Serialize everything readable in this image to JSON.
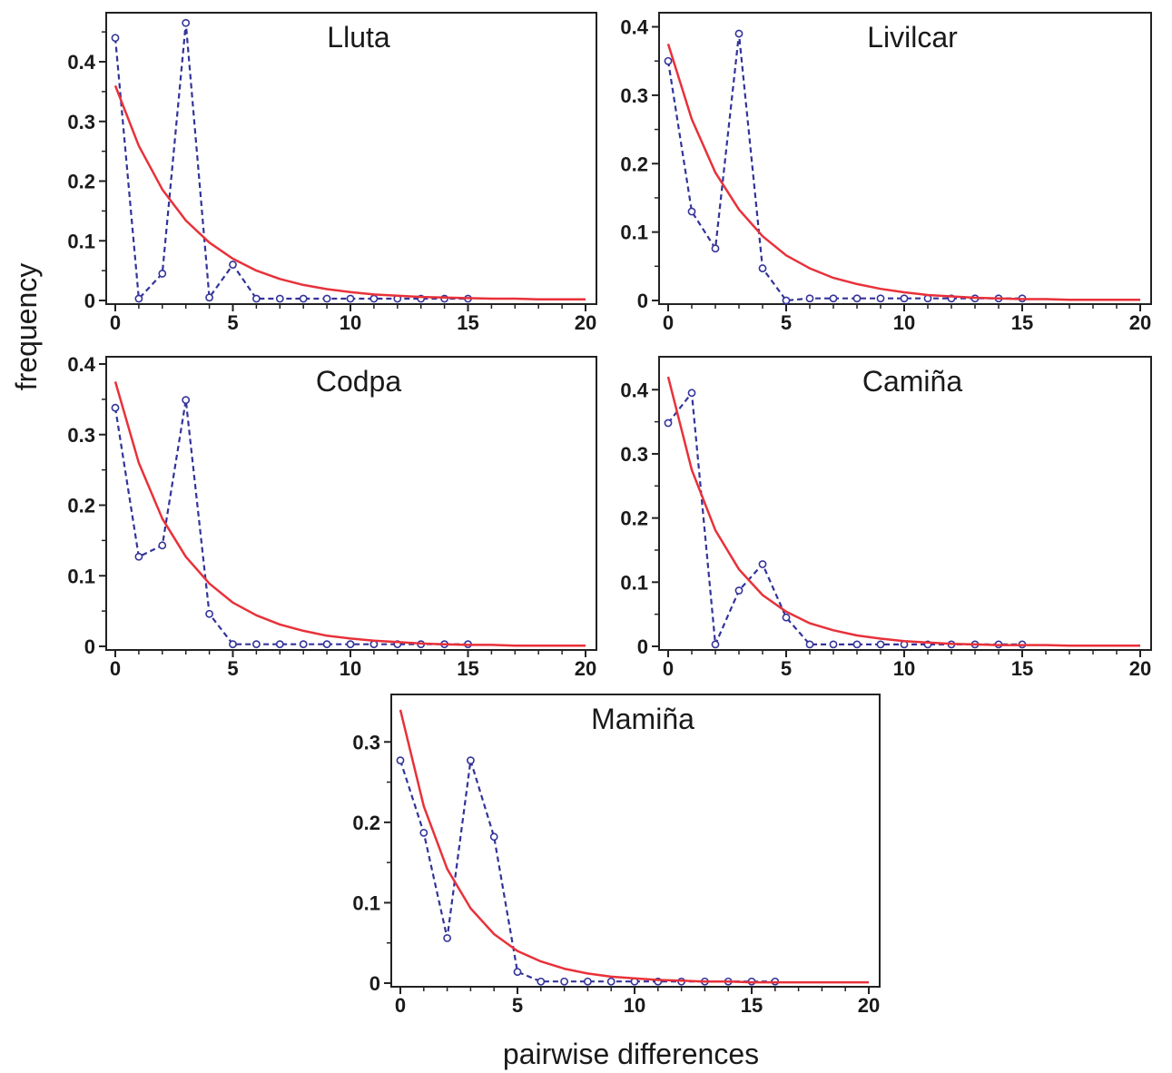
{
  "figure": {
    "ylabel": "frequency",
    "xlabel": "pairwise differences",
    "colors": {
      "observed": "#33339a",
      "expected": "#e8313a",
      "frame": "#222222"
    }
  },
  "chart_data": [
    {
      "type": "line",
      "title": "Lluta",
      "xlim": [
        0,
        20
      ],
      "ylim": [
        0,
        0.47
      ],
      "xticks": [
        "0",
        "5",
        "10",
        "15",
        "20"
      ],
      "yticks": [
        "0",
        "0.1",
        "0.2",
        "0.3",
        "0.4"
      ],
      "series": [
        {
          "style": "dashed-with-circles",
          "x": [
            0,
            1,
            2,
            3,
            4,
            5,
            6,
            7,
            8,
            9,
            10,
            11,
            12,
            13,
            14,
            15
          ],
          "y": [
            0.44,
            0.003,
            0.045,
            0.465,
            0.005,
            0.06,
            0.003,
            0.003,
            0.003,
            0.003,
            0.003,
            0.003,
            0.003,
            0.003,
            0.003,
            0.003
          ]
        },
        {
          "style": "solid",
          "x": [
            0,
            1,
            2,
            3,
            4,
            5,
            6,
            7,
            8,
            9,
            10,
            11,
            12,
            13,
            14,
            15,
            16,
            17,
            18,
            19,
            20
          ],
          "y": [
            0.36,
            0.259,
            0.186,
            0.134,
            0.097,
            0.07,
            0.05,
            0.036,
            0.026,
            0.019,
            0.014,
            0.01,
            0.008,
            0.006,
            0.005,
            0.004,
            0.003,
            0.003,
            0.002,
            0.002,
            0.002
          ]
        }
      ]
    },
    {
      "type": "line",
      "title": "Livilcar",
      "xlim": [
        0,
        20
      ],
      "ylim": [
        0,
        0.41
      ],
      "xticks": [
        "0",
        "5",
        "10",
        "15",
        "20"
      ],
      "yticks": [
        "0",
        "0.1",
        "0.2",
        "0.3",
        "0.4"
      ],
      "series": [
        {
          "style": "dashed-with-circles",
          "x": [
            0,
            1,
            2,
            3,
            4,
            5,
            6,
            7,
            8,
            9,
            10,
            11,
            12,
            13,
            14,
            15
          ],
          "y": [
            0.35,
            0.13,
            0.076,
            0.39,
            0.047,
            0.0,
            0.003,
            0.003,
            0.003,
            0.003,
            0.003,
            0.003,
            0.003,
            0.003,
            0.003,
            0.003
          ]
        },
        {
          "style": "solid",
          "x": [
            0,
            1,
            2,
            3,
            4,
            5,
            6,
            7,
            8,
            9,
            10,
            11,
            12,
            13,
            14,
            15,
            16,
            17,
            18,
            19,
            20
          ],
          "y": [
            0.375,
            0.265,
            0.187,
            0.133,
            0.094,
            0.066,
            0.047,
            0.033,
            0.024,
            0.017,
            0.012,
            0.008,
            0.006,
            0.004,
            0.003,
            0.002,
            0.002,
            0.001,
            0.001,
            0.001,
            0.001
          ]
        }
      ]
    },
    {
      "type": "line",
      "title": "Codpa",
      "xlim": [
        0,
        20
      ],
      "ylim": [
        0,
        0.4
      ],
      "xticks": [
        "0",
        "5",
        "10",
        "15",
        "20"
      ],
      "yticks": [
        "0",
        "0.1",
        "0.2",
        "0.3",
        "0.4"
      ],
      "series": [
        {
          "style": "dashed-with-circles",
          "x": [
            0,
            1,
            2,
            3,
            4,
            5,
            6,
            7,
            8,
            9,
            10,
            11,
            12,
            13,
            14,
            15
          ],
          "y": [
            0.338,
            0.127,
            0.143,
            0.349,
            0.046,
            0.003,
            0.003,
            0.003,
            0.003,
            0.003,
            0.003,
            0.003,
            0.003,
            0.003,
            0.003,
            0.003
          ]
        },
        {
          "style": "solid",
          "x": [
            0,
            1,
            2,
            3,
            4,
            5,
            6,
            7,
            8,
            9,
            10,
            11,
            12,
            13,
            14,
            15,
            16,
            17,
            18,
            19,
            20
          ],
          "y": [
            0.375,
            0.26,
            0.181,
            0.127,
            0.089,
            0.062,
            0.044,
            0.031,
            0.022,
            0.015,
            0.011,
            0.008,
            0.006,
            0.004,
            0.003,
            0.002,
            0.002,
            0.001,
            0.001,
            0.001,
            0.001
          ]
        }
      ]
    },
    {
      "type": "line",
      "title": "Camiña",
      "xlim": [
        0,
        20
      ],
      "ylim": [
        0,
        0.44
      ],
      "xticks": [
        "0",
        "5",
        "10",
        "15",
        "20"
      ],
      "yticks": [
        "0",
        "0.1",
        "0.2",
        "0.3",
        "0.4"
      ],
      "series": [
        {
          "style": "dashed-with-circles",
          "x": [
            0,
            1,
            2,
            3,
            4,
            5,
            6,
            7,
            8,
            9,
            10,
            11,
            12,
            13,
            14,
            15
          ],
          "y": [
            0.348,
            0.395,
            0.003,
            0.087,
            0.128,
            0.045,
            0.003,
            0.003,
            0.003,
            0.003,
            0.003,
            0.003,
            0.003,
            0.003,
            0.003,
            0.003
          ]
        },
        {
          "style": "solid",
          "x": [
            0,
            1,
            2,
            3,
            4,
            5,
            6,
            7,
            8,
            9,
            10,
            11,
            12,
            13,
            14,
            15,
            16,
            17,
            18,
            19,
            20
          ],
          "y": [
            0.42,
            0.275,
            0.181,
            0.12,
            0.08,
            0.054,
            0.036,
            0.025,
            0.017,
            0.012,
            0.008,
            0.006,
            0.004,
            0.003,
            0.002,
            0.002,
            0.002,
            0.001,
            0.001,
            0.001,
            0.001
          ]
        }
      ]
    },
    {
      "type": "line",
      "title": "Mamiña",
      "xlim": [
        0,
        20
      ],
      "ylim": [
        0,
        0.35
      ],
      "xticks": [
        "0",
        "5",
        "10",
        "15",
        "20"
      ],
      "yticks": [
        "0",
        "0.1",
        "0.2",
        "0.3"
      ],
      "series": [
        {
          "style": "dashed-with-circles",
          "x": [
            0,
            1,
            2,
            3,
            4,
            5,
            6,
            7,
            8,
            9,
            10,
            11,
            12,
            13,
            14,
            15,
            16
          ],
          "y": [
            0.277,
            0.187,
            0.056,
            0.277,
            0.182,
            0.014,
            0.002,
            0.002,
            0.002,
            0.002,
            0.002,
            0.002,
            0.002,
            0.002,
            0.002,
            0.002,
            0.002
          ]
        },
        {
          "style": "solid",
          "x": [
            0,
            1,
            2,
            3,
            4,
            5,
            6,
            7,
            8,
            9,
            10,
            11,
            12,
            13,
            14,
            15,
            16,
            17,
            18,
            19,
            20
          ],
          "y": [
            0.34,
            0.22,
            0.142,
            0.093,
            0.061,
            0.04,
            0.027,
            0.018,
            0.012,
            0.008,
            0.006,
            0.004,
            0.003,
            0.002,
            0.002,
            0.001,
            0.001,
            0.001,
            0.001,
            0.001,
            0.001
          ]
        }
      ]
    }
  ]
}
